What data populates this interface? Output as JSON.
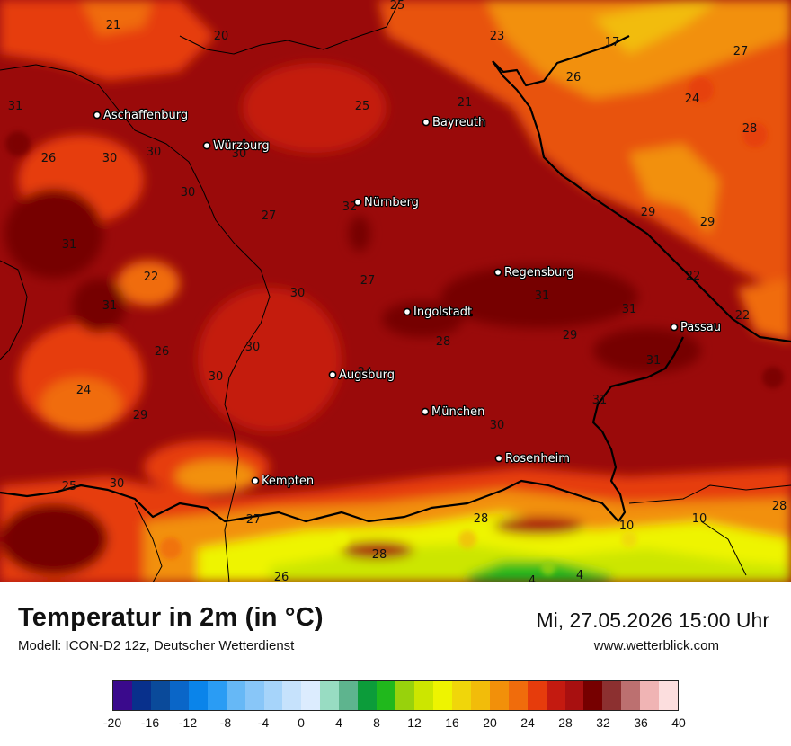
{
  "header": {
    "title": "Temperatur in 2m (in °C)",
    "subtitle": "Modell: ICON-D2 12z, Deutscher Wetterdienst",
    "datetime": "Mi, 27.05.2026 15:00 Uhr",
    "website": "www.wetterblick.com"
  },
  "cities": [
    {
      "name": "Aschaffenburg"
    },
    {
      "name": "Würzburg"
    },
    {
      "name": "Bayreuth"
    },
    {
      "name": "Nürnberg"
    },
    {
      "name": "Regensburg"
    },
    {
      "name": "Ingolstadt"
    },
    {
      "name": "Passau"
    },
    {
      "name": "Augsburg"
    },
    {
      "name": "München"
    },
    {
      "name": "Rosenheim"
    },
    {
      "name": "Kempten"
    }
  ],
  "temperature_values": [
    "25",
    "21",
    "20",
    "23",
    "17",
    "27",
    "26",
    "24",
    "31",
    "21",
    "25",
    "28",
    "26",
    "30",
    "30",
    "30",
    "30",
    "29",
    "29",
    "27",
    "32",
    "31",
    "22",
    "31",
    "27",
    "30",
    "22",
    "31",
    "31",
    "22",
    "26",
    "30",
    "28",
    "29",
    "31",
    "24",
    "30",
    "24",
    "31",
    "29",
    "30",
    "25",
    "30",
    "27",
    "28",
    "10",
    "10",
    "28",
    "28",
    "26",
    "4",
    "4"
  ],
  "legend": {
    "ticks": [
      "-20",
      "-16",
      "-12",
      "-8",
      "-4",
      "0",
      "4",
      "8",
      "12",
      "16",
      "20",
      "24",
      "28",
      "32",
      "36",
      "40"
    ],
    "colors": [
      "#3a0a8c",
      "#08308c",
      "#0a4a9a",
      "#0a66c8",
      "#0a84ea",
      "#2a9cf4",
      "#66b8f6",
      "#88c6f8",
      "#a6d4fa",
      "#c6e2fc",
      "#dcecfe",
      "#98dcc2",
      "#5eb48e",
      "#0c9c3a",
      "#20b81c",
      "#98d20c",
      "#cce600",
      "#eef400",
      "#f0d60a",
      "#f2bc0a",
      "#f2900a",
      "#f06c0c",
      "#e63c0c",
      "#c41a10",
      "#a81010",
      "#760000",
      "#8c3030",
      "#bc7070",
      "#f0b4b4",
      "#fcdede"
    ]
  },
  "colors": {
    "map_base": "#9a0a0a",
    "hot": "#760000",
    "warm": "#e63c0c",
    "mild": "#f2900a",
    "alpine_cool": "#eef400",
    "alpine_cold": "#20b81c"
  }
}
